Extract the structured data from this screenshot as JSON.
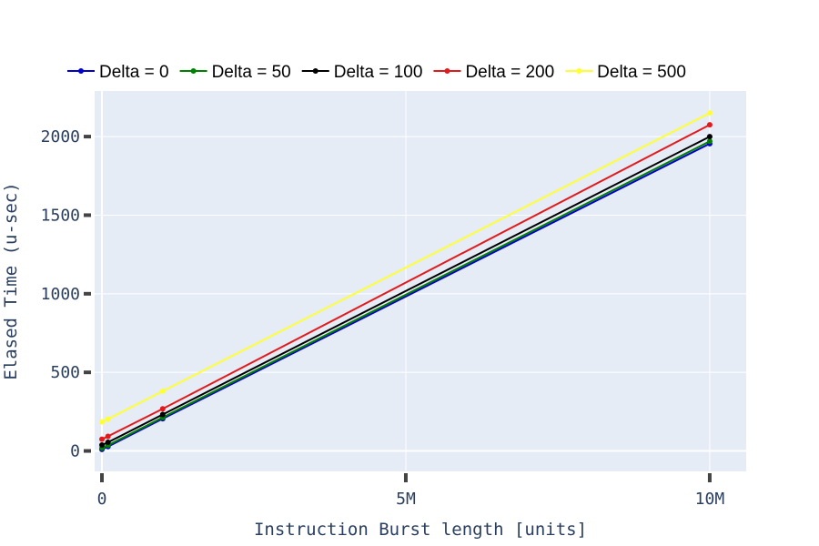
{
  "chart_data": {
    "type": "line",
    "xlabel": "Instruction Burst length [units]",
    "ylabel": "Elased Time (u-sec)",
    "xlim": [
      -120000,
      10600000
    ],
    "ylim": [
      -130,
      2290
    ],
    "x_ticks": [
      {
        "value": 0,
        "label": "0"
      },
      {
        "value": 5000000,
        "label": "5M"
      },
      {
        "value": 10000000,
        "label": "10M"
      }
    ],
    "y_ticks": [
      {
        "value": 0,
        "label": "0"
      },
      {
        "value": 500,
        "label": "500"
      },
      {
        "value": 1000,
        "label": "1000"
      },
      {
        "value": 1500,
        "label": "1500"
      },
      {
        "value": 2000,
        "label": "2000"
      }
    ],
    "grid": true,
    "legend_position": "top",
    "x": [
      0,
      100000,
      1000000,
      10000000
    ],
    "series": [
      {
        "name": "Delta = 0",
        "color": "#0000cc",
        "values": [
          10,
          28,
          205,
          1955
        ]
      },
      {
        "name": "Delta = 50",
        "color": "#008000",
        "values": [
          18,
          36,
          213,
          1970
        ]
      },
      {
        "name": "Delta = 100",
        "color": "#000000",
        "values": [
          38,
          55,
          232,
          2000
        ]
      },
      {
        "name": "Delta = 200",
        "color": "#e31a1c",
        "values": [
          75,
          93,
          268,
          2075
        ]
      },
      {
        "name": "Delta = 500",
        "color": "#ffff33",
        "values": [
          185,
          203,
          380,
          2150
        ]
      }
    ]
  }
}
